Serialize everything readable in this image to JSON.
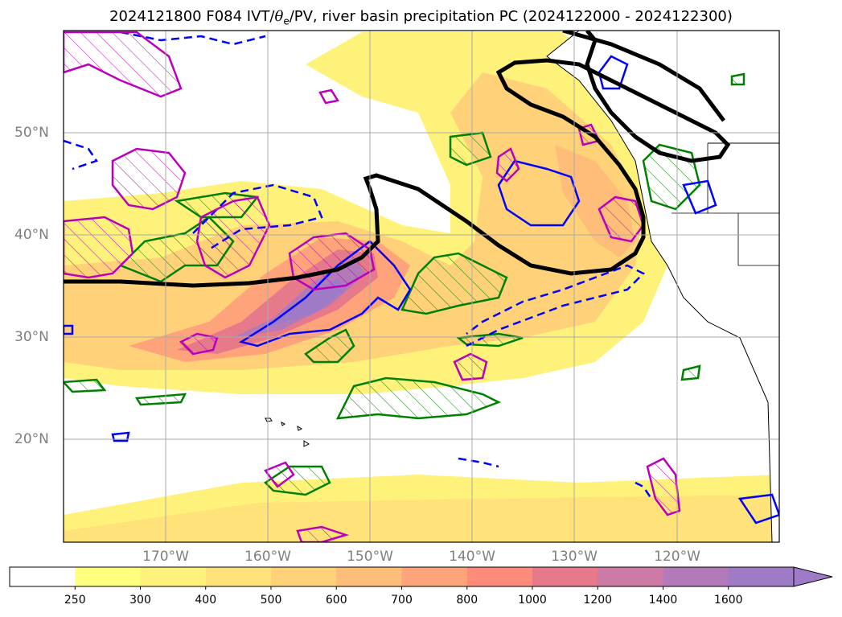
{
  "title": {
    "prefix": "2024121800 F084 IVT/",
    "theta": "θ",
    "theta_sub": "e",
    "suffix": "/PV, river basin precipitation PC (2024122000 - 2024122300)"
  },
  "axes": {
    "lat_labels": [
      "50°N",
      "40°N",
      "30°N",
      "20°N"
    ],
    "lon_labels": [
      "170°W",
      "160°W",
      "150°W",
      "140°W",
      "130°W",
      "120°W"
    ]
  },
  "colorbar": {
    "levels": [
      "250",
      "300",
      "400",
      "500",
      "600",
      "700",
      "800",
      "1000",
      "1200",
      "1400",
      "1600"
    ],
    "colors": [
      "#ffffff",
      "#ffff80",
      "#fff27a",
      "#ffe27a",
      "#ffd27a",
      "#ffbd7a",
      "#ffa47a",
      "#ff8c7a",
      "#e67a8a",
      "#cc7aa6",
      "#b27ab8",
      "#9e7ac7"
    ]
  },
  "colors": {
    "ocean": "#ffffff",
    "ivt_low": "#fff27a",
    "ivt_high": "#9e7ac7",
    "pv_contour": "#000000",
    "green_contour": "#008000",
    "blue_contour": "#0000ff",
    "magenta_contour": "#bb00bb",
    "grid": "#aaaaaa"
  }
}
